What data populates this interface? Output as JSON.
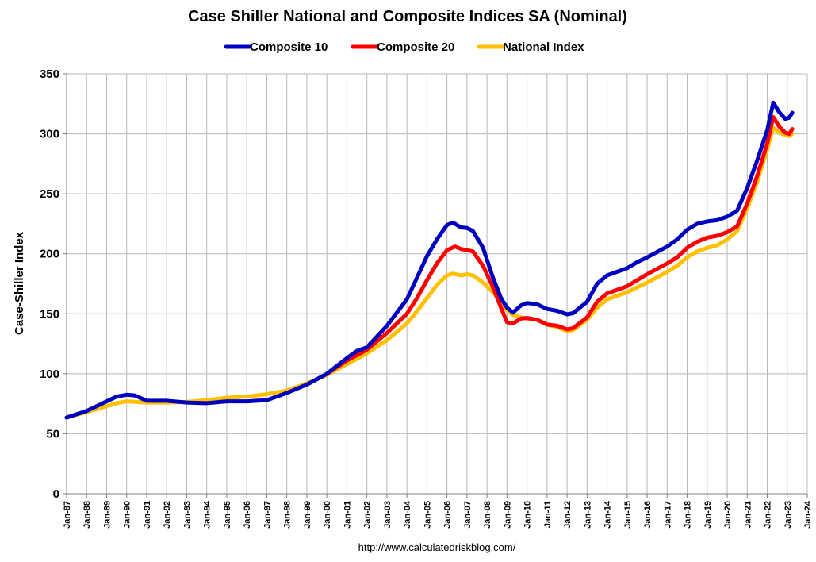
{
  "chart_data": {
    "type": "line",
    "title": "Case Shiller National and Composite Indices SA (Nominal)",
    "xlabel": "",
    "ylabel": "Case-Shiller Index",
    "source": "http://www.calculatedriskblog.com/",
    "ylim": [
      0,
      350
    ],
    "yticks": [
      0,
      50,
      100,
      150,
      200,
      250,
      300,
      350
    ],
    "xlim": [
      1987,
      2024
    ],
    "xticks": [
      "Jan-87",
      "Jan-88",
      "Jan-89",
      "Jan-90",
      "Jan-91",
      "Jan-92",
      "Jan-93",
      "Jan-94",
      "Jan-95",
      "Jan-96",
      "Jan-97",
      "Jan-98",
      "Jan-99",
      "Jan-00",
      "Jan-01",
      "Jan-02",
      "Jan-03",
      "Jan-04",
      "Jan-05",
      "Jan-06",
      "Jan-07",
      "Jan-08",
      "Jan-09",
      "Jan-10",
      "Jan-11",
      "Jan-12",
      "Jan-13",
      "Jan-14",
      "Jan-15",
      "Jan-16",
      "Jan-17",
      "Jan-18",
      "Jan-19",
      "Jan-20",
      "Jan-21",
      "Jan-22",
      "Jan-23",
      "Jan-24"
    ],
    "grid": true,
    "legend_position": "top-center",
    "series": [
      {
        "name": "Composite 10",
        "color": "#0000c0",
        "points": [
          [
            1987.0,
            63.5
          ],
          [
            1988.0,
            69
          ],
          [
            1989.0,
            77
          ],
          [
            1989.5,
            81
          ],
          [
            1990.0,
            82.5
          ],
          [
            1990.4,
            82
          ],
          [
            1991.0,
            77.5
          ],
          [
            1992.0,
            77.5
          ],
          [
            1993.0,
            76
          ],
          [
            1994.0,
            75.5
          ],
          [
            1995.0,
            77
          ],
          [
            1996.0,
            77
          ],
          [
            1997.0,
            78
          ],
          [
            1998.0,
            84
          ],
          [
            1999.0,
            91
          ],
          [
            2000.0,
            100
          ],
          [
            2001.0,
            113
          ],
          [
            2001.5,
            119
          ],
          [
            2002.0,
            122
          ],
          [
            2003.0,
            140
          ],
          [
            2004.0,
            162
          ],
          [
            2004.5,
            180
          ],
          [
            2005.0,
            198
          ],
          [
            2005.5,
            212
          ],
          [
            2006.0,
            224
          ],
          [
            2006.3,
            226
          ],
          [
            2006.7,
            222
          ],
          [
            2007.0,
            221.5
          ],
          [
            2007.3,
            219
          ],
          [
            2007.8,
            205
          ],
          [
            2008.3,
            180
          ],
          [
            2008.7,
            163
          ],
          [
            2009.0,
            155
          ],
          [
            2009.3,
            151
          ],
          [
            2009.7,
            157
          ],
          [
            2010.0,
            159
          ],
          [
            2010.5,
            158
          ],
          [
            2011.0,
            154
          ],
          [
            2011.5,
            152.5
          ],
          [
            2012.0,
            149.5
          ],
          [
            2012.3,
            150.5
          ],
          [
            2013.0,
            160
          ],
          [
            2013.5,
            175
          ],
          [
            2014.0,
            182
          ],
          [
            2014.5,
            185
          ],
          [
            2015.0,
            188
          ],
          [
            2015.5,
            193
          ],
          [
            2016.0,
            197
          ],
          [
            2017.0,
            206
          ],
          [
            2017.5,
            212
          ],
          [
            2018.0,
            220
          ],
          [
            2018.5,
            225
          ],
          [
            2019.0,
            227
          ],
          [
            2019.5,
            228
          ],
          [
            2020.0,
            231
          ],
          [
            2020.5,
            236
          ],
          [
            2021.0,
            255
          ],
          [
            2021.5,
            278
          ],
          [
            2022.0,
            303
          ],
          [
            2022.3,
            326
          ],
          [
            2022.6,
            318
          ],
          [
            2022.9,
            312.5
          ],
          [
            2023.1,
            313.5
          ],
          [
            2023.25,
            317.5
          ]
        ]
      },
      {
        "name": "Composite 20",
        "color": "#ff0000",
        "points": [
          [
            2000.0,
            100
          ],
          [
            2001.0,
            111
          ],
          [
            2002.0,
            120
          ],
          [
            2003.0,
            134
          ],
          [
            2004.0,
            150
          ],
          [
            2004.5,
            163
          ],
          [
            2005.0,
            178
          ],
          [
            2005.5,
            192
          ],
          [
            2006.0,
            203
          ],
          [
            2006.4,
            206
          ],
          [
            2006.7,
            204
          ],
          [
            2007.0,
            203
          ],
          [
            2007.3,
            202
          ],
          [
            2007.8,
            190
          ],
          [
            2008.3,
            172
          ],
          [
            2008.7,
            155
          ],
          [
            2009.0,
            143
          ],
          [
            2009.3,
            142
          ],
          [
            2009.7,
            146
          ],
          [
            2010.0,
            146.5
          ],
          [
            2010.5,
            145
          ],
          [
            2011.0,
            141
          ],
          [
            2011.5,
            140
          ],
          [
            2012.0,
            137
          ],
          [
            2012.3,
            138
          ],
          [
            2013.0,
            147
          ],
          [
            2013.5,
            160
          ],
          [
            2014.0,
            167
          ],
          [
            2014.5,
            170
          ],
          [
            2015.0,
            173
          ],
          [
            2015.5,
            178
          ],
          [
            2016.0,
            183
          ],
          [
            2017.0,
            192
          ],
          [
            2017.5,
            197
          ],
          [
            2018.0,
            205
          ],
          [
            2018.5,
            210
          ],
          [
            2019.0,
            213.5
          ],
          [
            2019.5,
            215
          ],
          [
            2020.0,
            218
          ],
          [
            2020.5,
            223
          ],
          [
            2021.0,
            242
          ],
          [
            2021.5,
            265
          ],
          [
            2022.0,
            292
          ],
          [
            2022.3,
            314
          ],
          [
            2022.6,
            306
          ],
          [
            2022.9,
            301
          ],
          [
            2023.1,
            300
          ],
          [
            2023.25,
            304
          ]
        ]
      },
      {
        "name": "National Index",
        "color": "#ffc000",
        "points": [
          [
            1987.0,
            63.5
          ],
          [
            1988.0,
            68
          ],
          [
            1989.0,
            73
          ],
          [
            1989.5,
            75.5
          ],
          [
            1990.0,
            77
          ],
          [
            1991.0,
            76
          ],
          [
            1992.0,
            76
          ],
          [
            1993.0,
            76.5
          ],
          [
            1994.0,
            78
          ],
          [
            1995.0,
            80
          ],
          [
            1996.0,
            81
          ],
          [
            1997.0,
            83
          ],
          [
            1998.0,
            86
          ],
          [
            1999.0,
            92
          ],
          [
            2000.0,
            99
          ],
          [
            2001.0,
            108
          ],
          [
            2002.0,
            117
          ],
          [
            2003.0,
            128
          ],
          [
            2004.0,
            142
          ],
          [
            2004.5,
            152
          ],
          [
            2005.0,
            163
          ],
          [
            2005.5,
            174
          ],
          [
            2006.0,
            182
          ],
          [
            2006.3,
            183.5
          ],
          [
            2006.7,
            182
          ],
          [
            2007.0,
            183
          ],
          [
            2007.3,
            182
          ],
          [
            2007.8,
            176
          ],
          [
            2008.3,
            168
          ],
          [
            2008.7,
            160
          ],
          [
            2009.0,
            153
          ],
          [
            2009.3,
            149
          ],
          [
            2009.7,
            147
          ],
          [
            2010.0,
            146
          ],
          [
            2010.5,
            145
          ],
          [
            2011.0,
            141
          ],
          [
            2011.5,
            139
          ],
          [
            2012.0,
            135.5
          ],
          [
            2012.3,
            136.5
          ],
          [
            2013.0,
            145
          ],
          [
            2013.5,
            155
          ],
          [
            2014.0,
            162
          ],
          [
            2014.5,
            165
          ],
          [
            2015.0,
            168
          ],
          [
            2015.5,
            172
          ],
          [
            2016.0,
            176
          ],
          [
            2017.0,
            185
          ],
          [
            2017.5,
            190
          ],
          [
            2018.0,
            197
          ],
          [
            2018.5,
            202
          ],
          [
            2019.0,
            205
          ],
          [
            2019.5,
            207
          ],
          [
            2020.0,
            212
          ],
          [
            2020.5,
            219
          ],
          [
            2021.0,
            238
          ],
          [
            2021.5,
            260
          ],
          [
            2022.0,
            287
          ],
          [
            2022.3,
            305
          ],
          [
            2022.6,
            301
          ],
          [
            2022.9,
            299
          ],
          [
            2023.1,
            298
          ],
          [
            2023.25,
            300
          ]
        ]
      }
    ]
  }
}
